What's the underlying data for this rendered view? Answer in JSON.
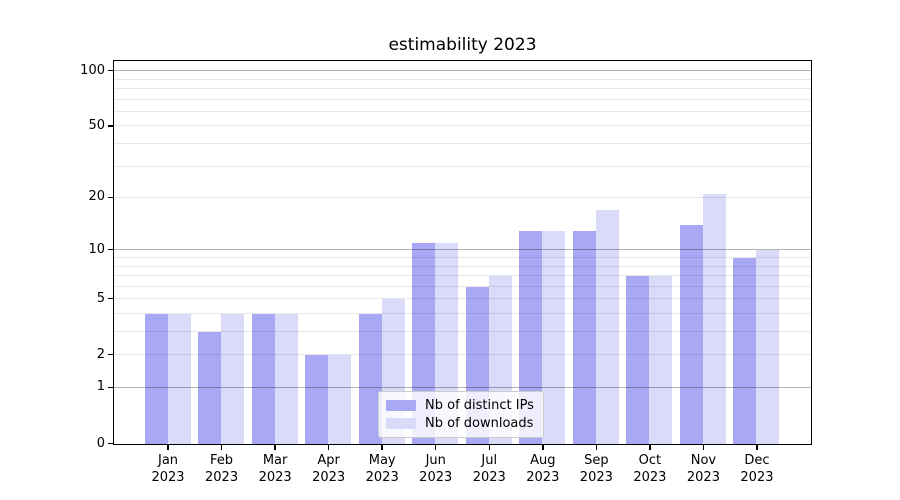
{
  "title": "estimability 2023",
  "legend": {
    "items": [
      {
        "label": "Nb of distinct IPs",
        "color": "#a8a8f4"
      },
      {
        "label": "Nb of downloads",
        "color": "#dadaf9"
      }
    ]
  },
  "chart_data": {
    "type": "bar",
    "title": "estimability 2023",
    "categories": [
      "Jan 2023",
      "Feb 2023",
      "Mar 2023",
      "Apr 2023",
      "May 2023",
      "Jun 2023",
      "Jul 2023",
      "Aug 2023",
      "Sep 2023",
      "Oct 2023",
      "Nov 2023",
      "Dec 2023"
    ],
    "series": [
      {
        "name": "Nb of distinct IPs",
        "color": "#a8a8f4",
        "values": [
          4,
          3,
          4,
          2,
          4,
          11,
          6,
          13,
          13,
          7,
          14,
          9
        ]
      },
      {
        "name": "Nb of downloads",
        "color": "#dadaf9",
        "values": [
          4,
          4,
          4,
          2,
          5,
          11,
          7,
          13,
          17,
          7,
          21,
          10
        ]
      }
    ],
    "xlabel": "",
    "ylabel": "",
    "yscale": "log1p",
    "ylim": [
      0,
      112
    ],
    "grid": "both",
    "legend_position": "lower center",
    "y_tick_labels": [
      "0",
      "1",
      "2",
      "5",
      "10",
      "20",
      "50",
      "100"
    ],
    "y_tick_values": [
      0,
      1,
      2,
      5,
      10,
      20,
      50,
      100
    ],
    "y_major_gridlines": [
      1,
      10,
      100
    ],
    "y_minor_gridlines": [
      2,
      3,
      4,
      5,
      6,
      7,
      8,
      9,
      20,
      30,
      40,
      50,
      60,
      70,
      80,
      90
    ]
  },
  "colors": {
    "series1": "#a8a8f4",
    "series2": "#dadaf9",
    "major_grid": "rgba(0,0,0,0.30)",
    "minor_grid": "rgba(0,0,0,0.09)",
    "spine": "#000000",
    "background": "#ffffff"
  }
}
